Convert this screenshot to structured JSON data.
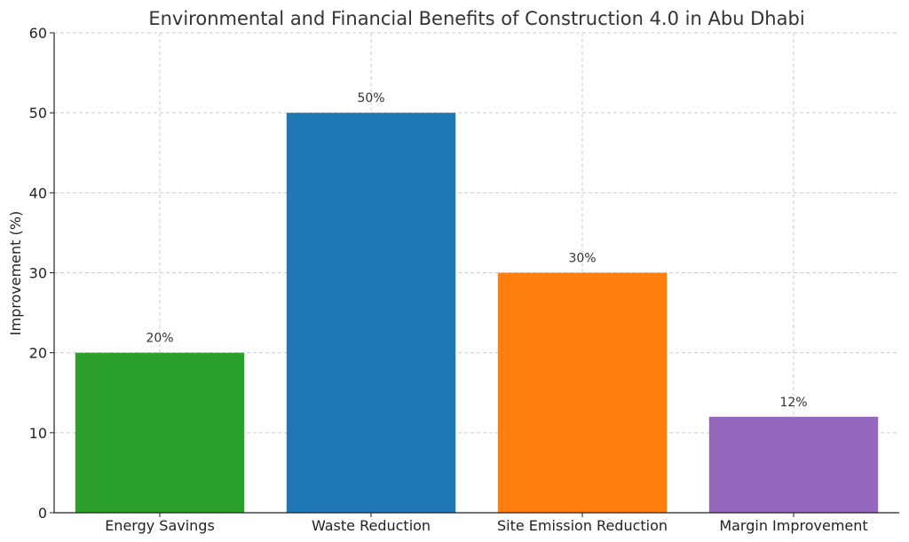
{
  "chart_data": {
    "type": "bar",
    "title": "Environmental and Financial Benefits of Construction 4.0 in Abu Dhabi",
    "xlabel": "",
    "ylabel": "Improvement (%)",
    "categories": [
      "Energy Savings",
      "Waste Reduction",
      "Site Emission Reduction",
      "Margin Improvement"
    ],
    "values": [
      20,
      50,
      30,
      12
    ],
    "data_labels": [
      "20%",
      "50%",
      "30%",
      "12%"
    ],
    "colors": [
      "#2ca02c",
      "#1f77b4",
      "#ff7f0e",
      "#9467bd"
    ],
    "ylim": [
      0,
      60
    ],
    "yticks": [
      0,
      10,
      20,
      30,
      40,
      50,
      60
    ],
    "grid": true
  }
}
